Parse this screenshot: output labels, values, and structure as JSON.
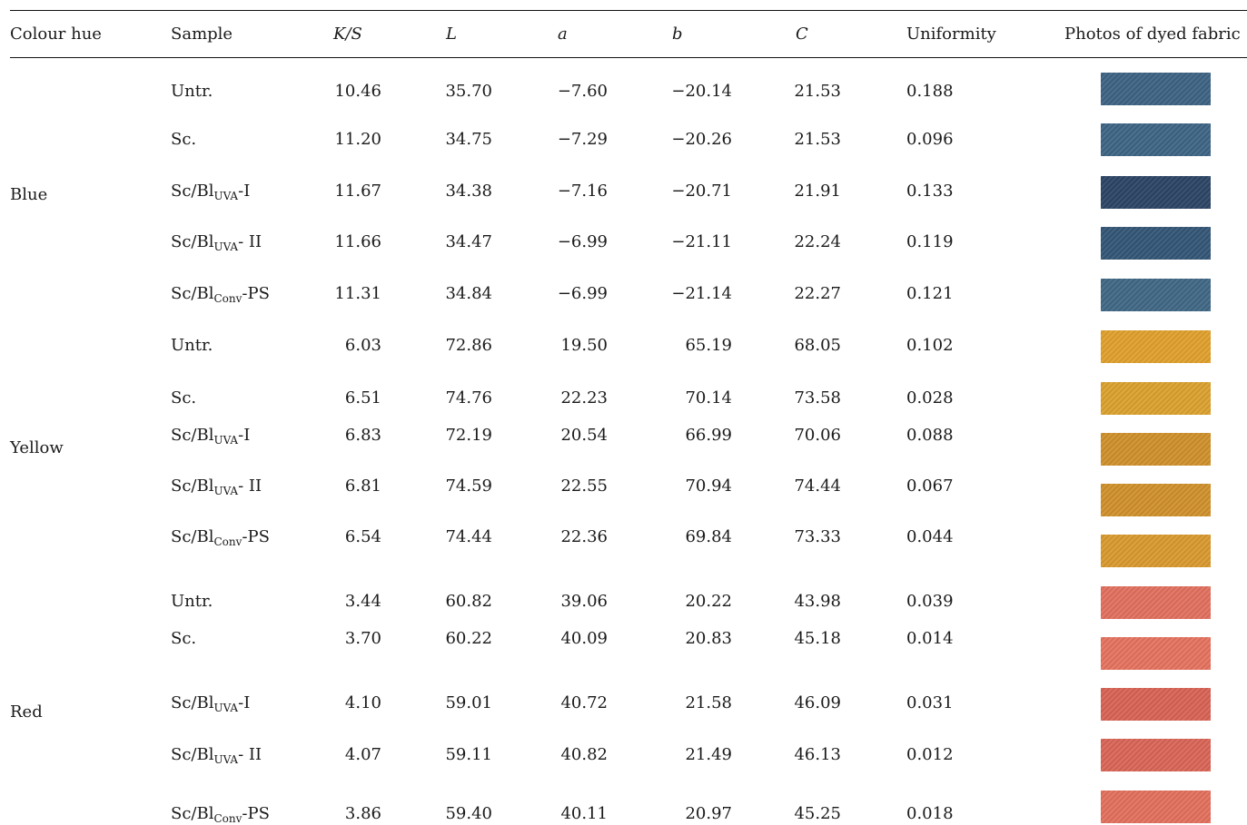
{
  "headers": {
    "hue": "Colour hue",
    "sample": "Sample",
    "ks": "K/S",
    "l": "L",
    "a": "a",
    "b": "b",
    "c": "C",
    "uniformity": "Uniformity",
    "photos": "Photos of dyed fabric"
  },
  "groups": [
    {
      "hue": "Blue"
    },
    {
      "hue": "Yellow"
    },
    {
      "hue": "Red"
    }
  ],
  "rows": [
    {
      "sample": {
        "base": "Untr.",
        "sub": "",
        "tail": ""
      },
      "ks": "10.46",
      "l": "35.70",
      "a": "−7.60",
      "b": "−20.14",
      "c": "21.53",
      "u": "0.188",
      "swatch": "#3d6383"
    },
    {
      "sample": {
        "base": "Sc.",
        "sub": "",
        "tail": ""
      },
      "ks": "11.20",
      "l": "34.75",
      "a": "−7.29",
      "b": "−20.26",
      "c": "21.53",
      "u": "0.096",
      "swatch": "#3e6585"
    },
    {
      "sample": {
        "base": "Sc/Bl",
        "sub": "UVA",
        "tail": "-I"
      },
      "ks": "11.67",
      "l": "34.38",
      "a": "−7.16",
      "b": "−20.71",
      "c": "21.91",
      "u": "0.133",
      "swatch": "#2c4565"
    },
    {
      "sample": {
        "base": "Sc/Bl",
        "sub": "UVA",
        "tail": "- II"
      },
      "ks": "11.66",
      "l": "34.47",
      "a": "−6.99",
      "b": "−21.11",
      "c": "22.24",
      "u": "0.119",
      "swatch": "#345677"
    },
    {
      "sample": {
        "base": "Sc/Bl",
        "sub": "Conv",
        "tail": "-PS"
      },
      "ks": "11.31",
      "l": "34.84",
      "a": "−6.99",
      "b": "−21.14",
      "c": "22.27",
      "u": "0.121",
      "swatch": "#416886"
    },
    {
      "sample": {
        "base": "Untr.",
        "sub": "",
        "tail": ""
      },
      "ks": "6.03",
      "l": "72.86",
      "a": "19.50",
      "b": "65.19",
      "c": "68.05",
      "u": "0.102",
      "swatch": "#e0a02d"
    },
    {
      "sample": {
        "base": "Sc.",
        "sub": "",
        "tail": ""
      },
      "ks": "6.51",
      "l": "74.76",
      "a": "22.23",
      "b": "70.14",
      "c": "73.58",
      "u": "0.028",
      "swatch": "#dba12f"
    },
    {
      "sample": {
        "base": "Sc/Bl",
        "sub": "UVA",
        "tail": "-I"
      },
      "ks": "6.83",
      "l": "72.19",
      "a": "20.54",
      "b": "66.99",
      "c": "70.06",
      "u": "0.088",
      "swatch": "#cf902b"
    },
    {
      "sample": {
        "base": "Sc/Bl",
        "sub": "UVA",
        "tail": "- II"
      },
      "ks": "6.81",
      "l": "74.59",
      "a": "22.55",
      "b": "70.94",
      "c": "74.44",
      "u": "0.067",
      "swatch": "#d0912c"
    },
    {
      "sample": {
        "base": "Sc/Bl",
        "sub": "Conv",
        "tail": "-PS"
      },
      "ks": "6.54",
      "l": "74.44",
      "a": "22.36",
      "b": "69.84",
      "c": "73.33",
      "u": "0.044",
      "swatch": "#d99a2f"
    },
    {
      "sample": {
        "base": "Untr.",
        "sub": "",
        "tail": ""
      },
      "ks": "3.44",
      "l": "60.82",
      "a": "39.06",
      "b": "20.22",
      "c": "43.98",
      "u": "0.039",
      "swatch": "#e2705f"
    },
    {
      "sample": {
        "base": "Sc.",
        "sub": "",
        "tail": ""
      },
      "ks": "3.70",
      "l": "60.22",
      "a": "40.09",
      "b": "20.83",
      "c": "45.18",
      "u": "0.014",
      "swatch": "#e5735f"
    },
    {
      "sample": {
        "base": "Sc/Bl",
        "sub": "UVA",
        "tail": "-I"
      },
      "ks": "4.10",
      "l": "59.01",
      "a": "40.72",
      "b": "21.58",
      "c": "46.09",
      "u": "0.031",
      "swatch": "#d86355"
    },
    {
      "sample": {
        "base": "Sc/Bl",
        "sub": "UVA",
        "tail": "- II"
      },
      "ks": "4.07",
      "l": "59.11",
      "a": "40.82",
      "b": "21.49",
      "c": "46.13",
      "u": "0.012",
      "swatch": "#d96556"
    },
    {
      "sample": {
        "base": "Sc/Bl",
        "sub": "Conv",
        "tail": "-PS"
      },
      "ks": "3.86",
      "l": "59.40",
      "a": "40.11",
      "b": "20.97",
      "c": "45.25",
      "u": "0.018",
      "swatch": "#e3705e"
    }
  ]
}
